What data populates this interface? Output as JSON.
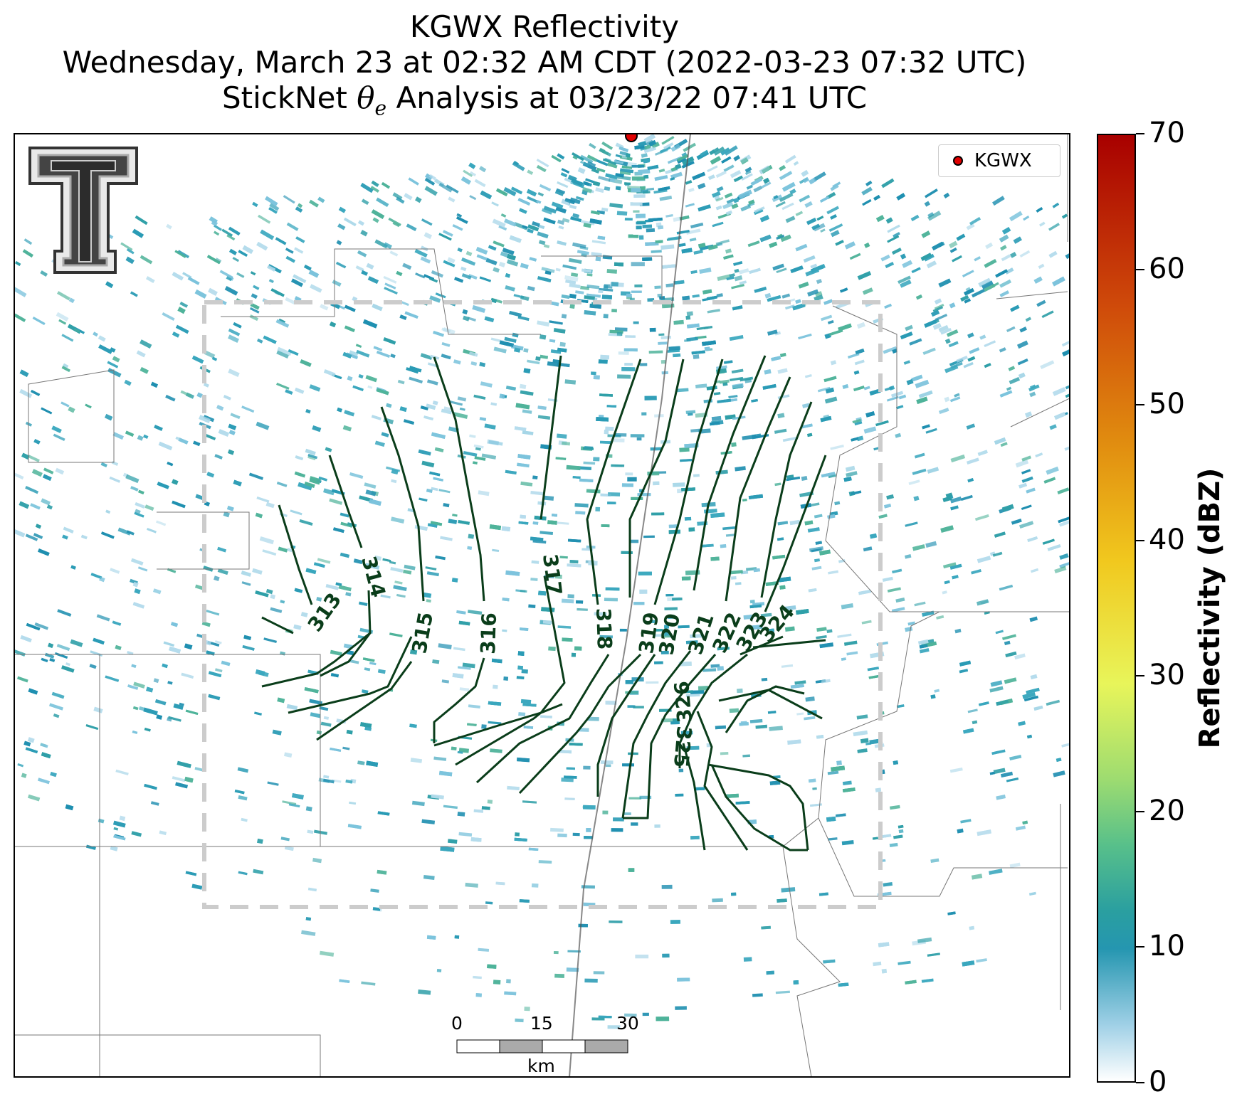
{
  "title": {
    "line1": "KGWX Reflectivity",
    "line2": "Wednesday, March 23 at 02:32 AM CDT (2022-03-23 07:32 UTC)",
    "line3_pre": "StickNet ",
    "line3_symbol": "θ",
    "line3_sub": "e",
    "line3_post": " Analysis at 03/23/22 07:41 UTC"
  },
  "legend": {
    "label": "KGWX",
    "marker_color": "#e00000"
  },
  "colorbar": {
    "title": "Reflectivity (dBZ)",
    "ticks": [
      "0",
      "10",
      "20",
      "30",
      "40",
      "50",
      "60",
      "70"
    ],
    "range": [
      0,
      70
    ]
  },
  "scalebar": {
    "labels": [
      "0",
      "15",
      "30"
    ],
    "unit": "km"
  },
  "contours": {
    "color": "#0a3d1a",
    "labels": [
      "313",
      "314",
      "315",
      "316",
      "317",
      "318",
      "319",
      "320",
      "321",
      "322",
      "323",
      "324",
      "325",
      "326"
    ]
  },
  "colors": {
    "analysis_box": "#cccccc",
    "state_lines": "#888888",
    "radar_echo": "#2a9bb5"
  }
}
